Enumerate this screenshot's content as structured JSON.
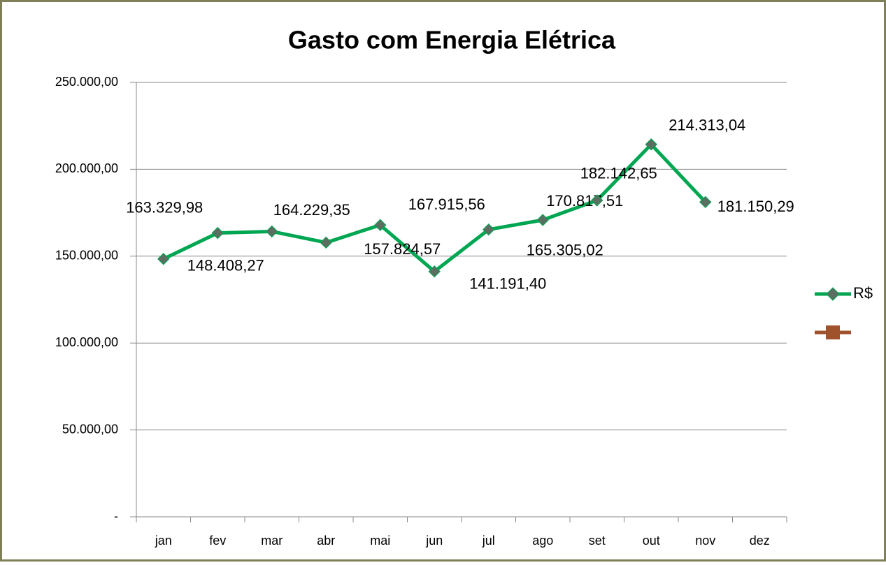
{
  "chart_data": {
    "type": "line",
    "title": "Gasto com Energia Elétrica",
    "categories": [
      "jan",
      "fev",
      "mar",
      "abr",
      "mai",
      "jun",
      "jul",
      "ago",
      "set",
      "out",
      "nov",
      "dez"
    ],
    "series": [
      {
        "name": "R$",
        "color": "#00a651",
        "marker_color": "#5a6e62",
        "values": [
          148408.27,
          163329.98,
          164229.35,
          157824.57,
          167915.56,
          141191.4,
          165305.02,
          170817.51,
          182142.65,
          214313.04,
          181150.29,
          null
        ],
        "value_labels": [
          "148.408,27",
          "163.329,98",
          "164.229,35",
          "157.824,57",
          "167.915,56",
          "141.191,40",
          "165.305,02",
          "170.817,51",
          "182.142,65",
          "214.313,04",
          "181.150,29",
          null
        ]
      },
      {
        "color": "#a0522d",
        "values": [
          null,
          null,
          null,
          null,
          null,
          null,
          null,
          null,
          null,
          null,
          null,
          null
        ]
      }
    ],
    "ylim": [
      0,
      250000
    ],
    "yticks": [
      {
        "value": 0,
        "label": "-"
      },
      {
        "value": 50000,
        "label": "50.000,00"
      },
      {
        "value": 100000,
        "label": "100.000,00"
      },
      {
        "value": 150000,
        "label": "150.000,00"
      },
      {
        "value": 200000,
        "label": "200.000,00"
      },
      {
        "value": 250000,
        "label": "250.000,00"
      }
    ],
    "grid": true,
    "legend": "right"
  }
}
